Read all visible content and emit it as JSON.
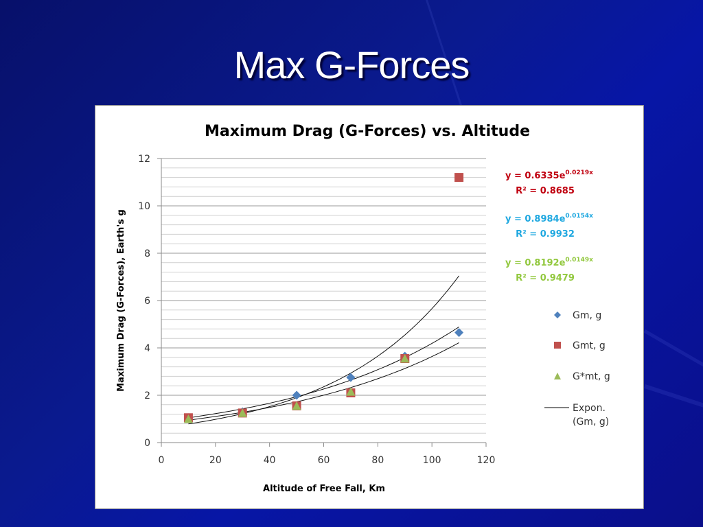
{
  "slide": {
    "title": "Max G-Forces",
    "background_color": "#0a1a8f"
  },
  "chart_data": {
    "type": "scatter",
    "title": "Maximum Drag (G-Forces) vs. Altitude",
    "xlabel": "Altitude of Free Fall, Km",
    "ylabel": "Maximum Drag (G-Forces), Earth's g",
    "xlim": [
      0,
      120
    ],
    "ylim": [
      0,
      12
    ],
    "x_ticks": [
      "0",
      "20",
      "40",
      "60",
      "80",
      "100",
      "120"
    ],
    "y_ticks": [
      "0",
      "2",
      "4",
      "6",
      "8",
      "10",
      "12"
    ],
    "grid": {
      "major_y": 2,
      "minor_y": 0.4,
      "x_grid": false
    },
    "legend_position": "right",
    "series": [
      {
        "name": "Gm, g",
        "marker": "diamond",
        "color": "#4f81bd",
        "x": [
          10,
          30,
          50,
          70,
          90,
          110
        ],
        "y": [
          1.05,
          1.3,
          2.0,
          2.75,
          3.65,
          4.65
        ]
      },
      {
        "name": "Gmt, g",
        "marker": "square",
        "color": "#c0504d",
        "x": [
          10,
          30,
          50,
          70,
          90,
          110
        ],
        "y": [
          1.05,
          1.25,
          1.55,
          2.1,
          3.55,
          11.2
        ]
      },
      {
        "name": "G*mt, g",
        "marker": "triangle",
        "color": "#9bbb59",
        "x": [
          10,
          30,
          50,
          70,
          90
        ],
        "y": [
          1.0,
          1.25,
          1.55,
          2.15,
          3.55
        ]
      }
    ],
    "trendlines": [
      {
        "name": "Expon. (Gm, g)",
        "type": "exponential",
        "a": 0.6335,
        "b": 0.0219,
        "equation": "y = 0.6335e",
        "exponent": "0.0219x",
        "r2": "R² = 0.8685",
        "label_color": "#c0000f"
      },
      {
        "type": "exponential",
        "a": 0.8984,
        "b": 0.0154,
        "equation": "y = 0.8984e",
        "exponent": "0.0154x",
        "r2": "R² = 0.9932",
        "label_color": "#1fa8e0"
      },
      {
        "type": "exponential",
        "a": 0.8192,
        "b": 0.0149,
        "equation": "y = 0.8192e",
        "exponent": "0.0149x",
        "r2": "R² = 0.9479",
        "label_color": "#92c83e"
      }
    ],
    "legend": [
      {
        "label": "Gm, g",
        "marker": "diamond",
        "color": "#4f81bd"
      },
      {
        "label": "Gmt, g",
        "marker": "square",
        "color": "#c0504d"
      },
      {
        "label": "G*mt, g",
        "marker": "triangle",
        "color": "#9bbb59"
      },
      {
        "label_line1": "Expon.",
        "label_line2": "(Gm, g)",
        "marker": "line",
        "color": "#000000"
      }
    ]
  }
}
